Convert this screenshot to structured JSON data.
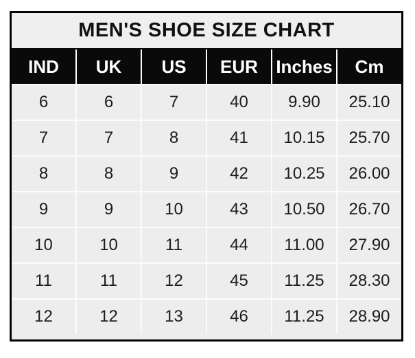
{
  "title": "MEN'S SHOE SIZE CHART",
  "colors": {
    "page_bg": "#ffffff",
    "border": "#040404",
    "title_bg": "#efefef",
    "header_bg": "#0a0a0a",
    "header_text": "#ffffff",
    "cell_bg": "#ededed",
    "gridline": "#fbfbfb",
    "cell_text": "#1c1c1c"
  },
  "table": {
    "headers": [
      "IND",
      "UK",
      "US",
      "EUR",
      "Inches",
      "Cm"
    ],
    "rows": [
      [
        "6",
        "6",
        "7",
        "40",
        "9.90",
        "25.10"
      ],
      [
        "7",
        "7",
        "8",
        "41",
        "10.15",
        "25.70"
      ],
      [
        "8",
        "8",
        "9",
        "42",
        "10.25",
        "26.00"
      ],
      [
        "9",
        "9",
        "10",
        "43",
        "10.50",
        "26.70"
      ],
      [
        "10",
        "10",
        "11",
        "44",
        "11.00",
        "27.90"
      ],
      [
        "11",
        "11",
        "12",
        "45",
        "11.25",
        "28.30"
      ],
      [
        "12",
        "12",
        "13",
        "46",
        "11.25",
        "28.90"
      ]
    ]
  },
  "chart_data": {
    "type": "table",
    "title": "MEN'S SHOE SIZE CHART",
    "columns": [
      "IND",
      "UK",
      "US",
      "EUR",
      "Inches",
      "Cm"
    ],
    "rows": [
      [
        6,
        6,
        7,
        40,
        9.9,
        25.1
      ],
      [
        7,
        7,
        8,
        41,
        10.15,
        25.7
      ],
      [
        8,
        8,
        9,
        42,
        10.25,
        26.0
      ],
      [
        9,
        9,
        10,
        43,
        10.5,
        26.7
      ],
      [
        10,
        10,
        11,
        44,
        11.0,
        27.9
      ],
      [
        11,
        11,
        12,
        45,
        11.25,
        28.3
      ],
      [
        12,
        12,
        13,
        46,
        11.25,
        28.9
      ]
    ]
  }
}
